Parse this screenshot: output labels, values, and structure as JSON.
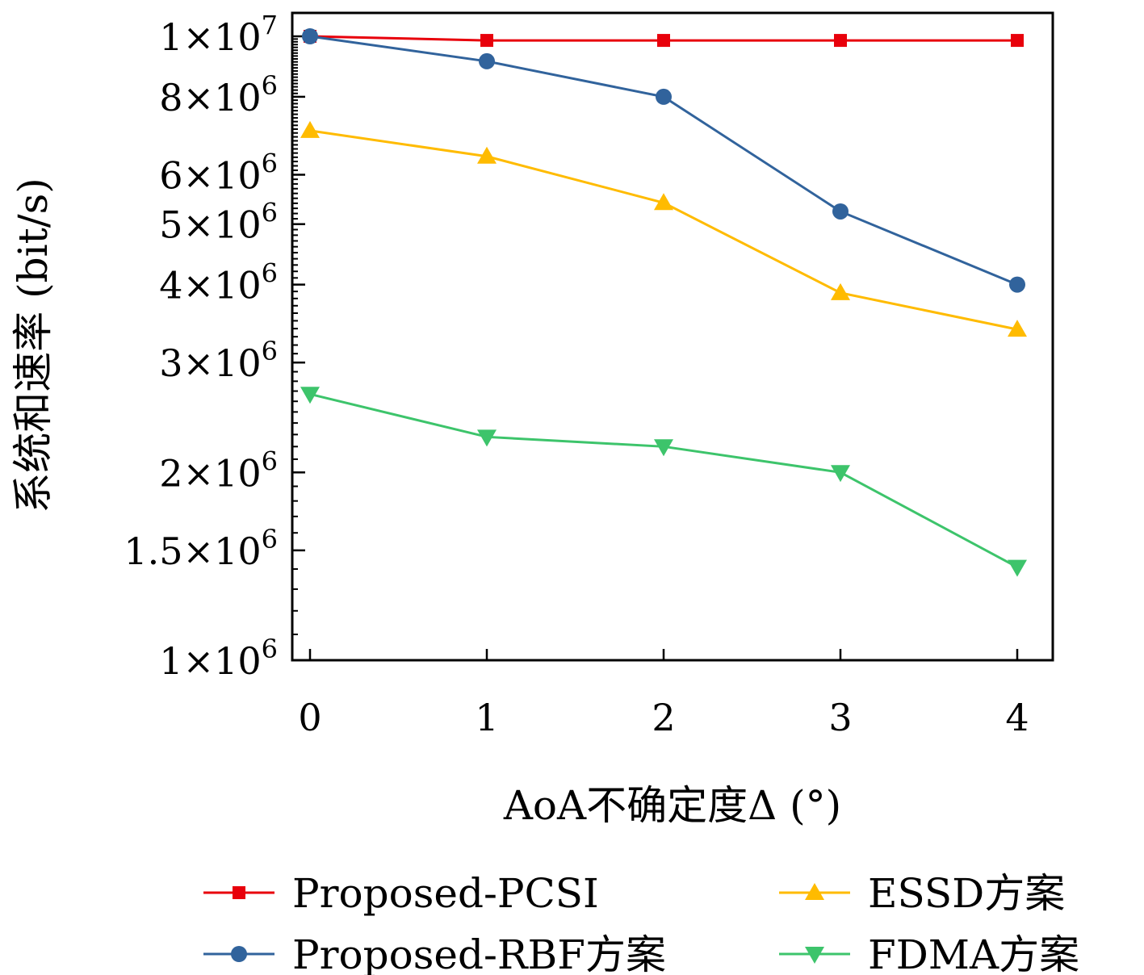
{
  "chart_data": {
    "type": "line",
    "title": "",
    "xlabel": "AoA不确定度Δ (°)",
    "ylabel": "系统和速率 (bit/s)",
    "yscale": "log",
    "ylim": [
      1000000,
      10500000
    ],
    "xlim": [
      -0.1,
      4.2
    ],
    "x": [
      0,
      1,
      2,
      3,
      4
    ],
    "xticks": [
      "0",
      "1",
      "2",
      "3",
      "4"
    ],
    "yticks": [
      {
        "value": 1000000,
        "mant": "1",
        "exp": "6"
      },
      {
        "value": 1500000,
        "mant": "1.5",
        "exp": "6"
      },
      {
        "value": 2000000,
        "mant": "2",
        "exp": "6"
      },
      {
        "value": 3000000,
        "mant": "3",
        "exp": "6"
      },
      {
        "value": 4000000,
        "mant": "4",
        "exp": "6"
      },
      {
        "value": 5000000,
        "mant": "5",
        "exp": "6"
      },
      {
        "value": 6000000,
        "mant": "6",
        "exp": "6"
      },
      {
        "value": 8000000,
        "mant": "8",
        "exp": "6"
      },
      {
        "value": 10000000,
        "mant": "1",
        "exp": "7"
      }
    ],
    "grid": false,
    "legend_position": "bottom",
    "series": [
      {
        "name": "Proposed-PCSI",
        "color": "#e8000b",
        "marker": "square",
        "values": [
          10000000,
          9850000,
          9850000,
          9850000,
          9850000
        ]
      },
      {
        "name": "Proposed-RBF方案",
        "color": "#31639c",
        "marker": "circle",
        "values": [
          10000000,
          9120000,
          8000000,
          5240000,
          4000000
        ]
      },
      {
        "name": "ESSD方案",
        "color": "#ffbb00",
        "marker": "triangle-up",
        "values": [
          7060000,
          6420000,
          5410000,
          3880000,
          3390000
        ]
      },
      {
        "name": "FDMA方案",
        "color": "#3dc46b",
        "marker": "triangle-down",
        "values": [
          2670000,
          2280000,
          2200000,
          2000000,
          1410000
        ]
      }
    ]
  }
}
